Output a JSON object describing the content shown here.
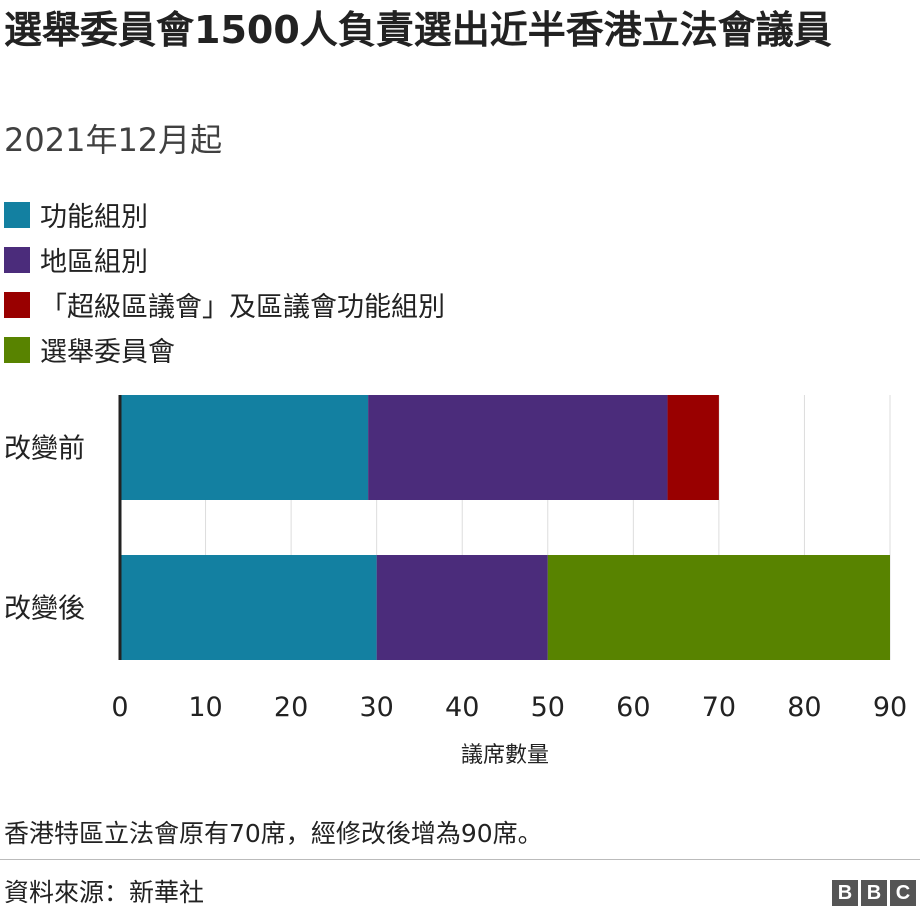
{
  "title": "選舉委員會1500人負責選出近半香港立法會議員",
  "subtitle": "2021年12月起",
  "chart_data": {
    "type": "bar",
    "orientation": "horizontal",
    "stacked": true,
    "categories": [
      "改變前",
      "改變後"
    ],
    "series": [
      {
        "name": "功能組別",
        "color": "#1380A1",
        "values": [
          29,
          30
        ]
      },
      {
        "name": "地區組別",
        "color": "#4B2C7B",
        "values": [
          35,
          20
        ]
      },
      {
        "name": "「超級區議會」及區議會功能組別",
        "color": "#990000",
        "values": [
          6,
          0
        ]
      },
      {
        "name": "選舉委員會",
        "color": "#588300",
        "values": [
          0,
          40
        ]
      }
    ],
    "xlabel": "議席數量",
    "xlim": [
      0,
      90
    ],
    "xticks": [
      0,
      10,
      20,
      30,
      40,
      50,
      60,
      70,
      80,
      90
    ],
    "grid": true,
    "legend_position": "top-left"
  },
  "note": "香港特區立法會原有70席，經修改後增為90席。",
  "source": "資料來源：新華社",
  "logo": {
    "letters": [
      "B",
      "B",
      "C"
    ]
  }
}
